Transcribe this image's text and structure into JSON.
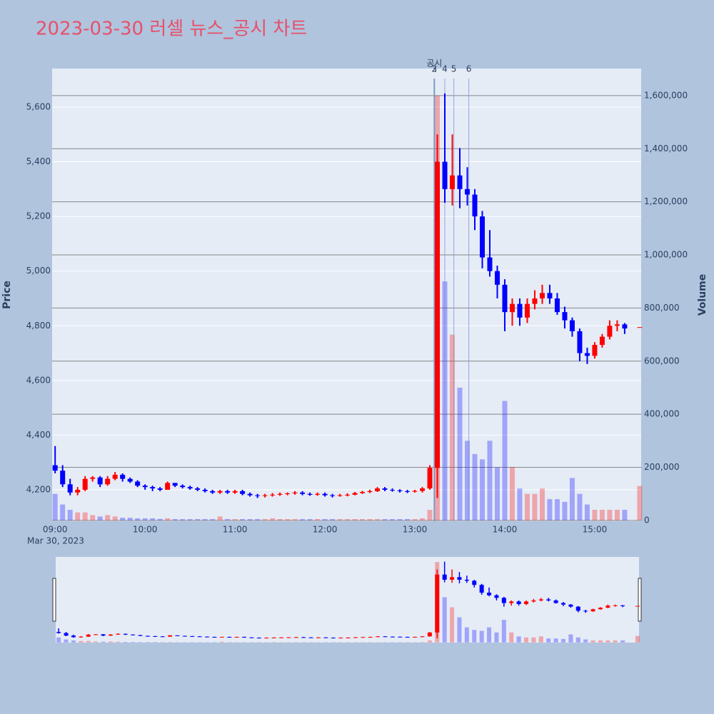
{
  "chart_data": {
    "type": "candlestick",
    "title": "2023-03-30 러셀 뉴스_공시 차트",
    "y_label": "Price",
    "y2_label": "Volume",
    "x_date_label": "Mar 30, 2023",
    "up_color": "#ff0000",
    "down_color": "#0000ff",
    "xlim": [
      "08:58",
      "15:31"
    ],
    "xticks": [
      "09:00",
      "10:00",
      "11:00",
      "12:00",
      "13:00",
      "14:00",
      "15:00"
    ],
    "ylim": [
      4085,
      5741
    ],
    "yticks": [
      {
        "value": 4200,
        "label": "4,200"
      },
      {
        "value": 4400,
        "label": "4,400"
      },
      {
        "value": 4600,
        "label": "4,600"
      },
      {
        "value": 4800,
        "label": "4,800"
      },
      {
        "value": 5000,
        "label": "5,000"
      },
      {
        "value": 5200,
        "label": "5,200"
      },
      {
        "value": 5400,
        "label": "5,400"
      },
      {
        "value": 5600,
        "label": "5,600"
      }
    ],
    "y2lim": [
      -3000,
      1702000
    ],
    "y2ticks": [
      0,
      {
        "value": 200000,
        "label": "200,000"
      },
      {
        "value": 400000,
        "label": "400,000"
      },
      {
        "value": 600000,
        "label": "600,000"
      },
      {
        "value": 800000,
        "label": "800,000"
      },
      {
        "value": 1000000,
        "label": "1,000,000"
      },
      {
        "value": 1200000,
        "label": "1,200,000"
      },
      {
        "value": 1400000,
        "label": "1,400,000"
      },
      {
        "value": 1600000,
        "label": "1,600,000"
      }
    ],
    "events": [
      {
        "x": "13:13",
        "label": "공시"
      },
      {
        "x": "13:13",
        "label": "2"
      },
      {
        "x": "13:13",
        "label": "3"
      },
      {
        "x": "13:20",
        "label": "4"
      },
      {
        "x": "13:26",
        "label": "5"
      },
      {
        "x": "13:36",
        "label": "6"
      }
    ],
    "x": [
      "09:00",
      "09:05",
      "09:10",
      "09:15",
      "09:20",
      "09:25",
      "09:30",
      "09:35",
      "09:40",
      "09:45",
      "09:50",
      "09:55",
      "10:00",
      "10:05",
      "10:10",
      "10:15",
      "10:20",
      "10:25",
      "10:30",
      "10:35",
      "10:40",
      "10:45",
      "10:50",
      "10:55",
      "11:00",
      "11:05",
      "11:10",
      "11:15",
      "11:20",
      "11:25",
      "11:30",
      "11:35",
      "11:40",
      "11:45",
      "11:50",
      "11:55",
      "12:00",
      "12:05",
      "12:10",
      "12:15",
      "12:20",
      "12:25",
      "12:30",
      "12:35",
      "12:40",
      "12:45",
      "12:50",
      "12:55",
      "13:00",
      "13:05",
      "13:10",
      "13:15",
      "13:20",
      "13:25",
      "13:30",
      "13:35",
      "13:40",
      "13:45",
      "13:50",
      "13:55",
      "14:00",
      "14:05",
      "14:10",
      "14:15",
      "14:20",
      "14:25",
      "14:30",
      "14:35",
      "14:40",
      "14:45",
      "14:50",
      "14:55",
      "15:00",
      "15:05",
      "15:10",
      "15:15",
      "15:20",
      "15:30"
    ],
    "open": [
      4290,
      4270,
      4220,
      4190,
      4200,
      4240,
      4245,
      4220,
      4240,
      4255,
      4240,
      4230,
      4215,
      4210,
      4205,
      4200,
      4225,
      4215,
      4210,
      4205,
      4200,
      4195,
      4190,
      4195,
      4190,
      4195,
      4185,
      4180,
      4178,
      4180,
      4182,
      4185,
      4187,
      4190,
      4185,
      4182,
      4185,
      4180,
      4178,
      4180,
      4182,
      4188,
      4192,
      4195,
      4205,
      4200,
      4198,
      4195,
      4193,
      4196,
      4205,
      4280,
      5400,
      5300,
      5350,
      5300,
      5280,
      5200,
      5050,
      5000,
      4950,
      4850,
      4880,
      4830,
      4880,
      4900,
      4920,
      4900,
      4850,
      4820,
      4780,
      4700,
      4690,
      4730,
      4760,
      4800,
      4805,
      4795
    ],
    "high": [
      4360,
      4290,
      4240,
      4210,
      4250,
      4250,
      4250,
      4250,
      4265,
      4260,
      4245,
      4235,
      4220,
      4215,
      4210,
      4230,
      4225,
      4220,
      4215,
      4210,
      4205,
      4200,
      4200,
      4200,
      4200,
      4200,
      4190,
      4185,
      4185,
      4188,
      4190,
      4190,
      4195,
      4195,
      4190,
      4190,
      4190,
      4185,
      4185,
      4187,
      4192,
      4196,
      4200,
      4210,
      4210,
      4205,
      4202,
      4200,
      4200,
      4210,
      4290,
      5500,
      5650,
      5500,
      5450,
      5380,
      5300,
      5220,
      5150,
      5020,
      4970,
      4900,
      4900,
      4900,
      4930,
      4950,
      4950,
      4920,
      4870,
      4830,
      4790,
      4720,
      4740,
      4770,
      4820,
      4820,
      4810,
      4795
    ],
    "low": [
      4260,
      4210,
      4180,
      4180,
      4195,
      4230,
      4210,
      4215,
      4235,
      4230,
      4225,
      4210,
      4200,
      4195,
      4195,
      4200,
      4210,
      4205,
      4200,
      4195,
      4190,
      4185,
      4185,
      4185,
      4185,
      4180,
      4175,
      4170,
      4172,
      4175,
      4178,
      4180,
      4182,
      4180,
      4178,
      4178,
      4175,
      4172,
      4175,
      4176,
      4180,
      4185,
      4188,
      4192,
      4195,
      4193,
      4190,
      4188,
      4190,
      4190,
      4200,
      4170,
      5250,
      5240,
      5230,
      5240,
      5150,
      5010,
      4980,
      4900,
      4780,
      4800,
      4800,
      4810,
      4860,
      4880,
      4880,
      4840,
      4790,
      4760,
      4670,
      4660,
      4680,
      4720,
      4750,
      4780,
      4770,
      4795
    ],
    "close": [
      4270,
      4220,
      4190,
      4200,
      4240,
      4245,
      4220,
      4240,
      4255,
      4240,
      4230,
      4215,
      4210,
      4205,
      4200,
      4225,
      4215,
      4210,
      4205,
      4200,
      4195,
      4190,
      4195,
      4190,
      4195,
      4185,
      4180,
      4178,
      4180,
      4182,
      4185,
      4187,
      4190,
      4185,
      4182,
      4185,
      4180,
      4178,
      4180,
      4182,
      4188,
      4192,
      4195,
      4205,
      4200,
      4198,
      4195,
      4193,
      4196,
      4205,
      4280,
      5400,
      5300,
      5350,
      5300,
      5280,
      5200,
      5050,
      5000,
      4950,
      4850,
      4880,
      4830,
      4880,
      4900,
      4920,
      4900,
      4850,
      4820,
      4780,
      4700,
      4690,
      4730,
      4760,
      4800,
      4805,
      4790,
      4795
    ],
    "volume": [
      100000,
      60000,
      40000,
      30000,
      30000,
      20000,
      15000,
      20000,
      15000,
      10000,
      10000,
      8000,
      8000,
      8000,
      6000,
      8000,
      5000,
      5000,
      5000,
      5000,
      5000,
      5000,
      15000,
      5000,
      5000,
      5000,
      5000,
      5000,
      5000,
      8000,
      5000,
      5000,
      5000,
      5000,
      5000,
      5000,
      5000,
      5000,
      5000,
      5000,
      5000,
      5000,
      5000,
      5000,
      5000,
      5000,
      5000,
      5000,
      5000,
      8000,
      40000,
      1600000,
      900000,
      700000,
      500000,
      300000,
      250000,
      230000,
      300000,
      200000,
      450000,
      200000,
      120000,
      100000,
      100000,
      120000,
      80000,
      80000,
      70000,
      160000,
      100000,
      60000,
      40000,
      40000,
      40000,
      40000,
      40000,
      130000
    ]
  }
}
